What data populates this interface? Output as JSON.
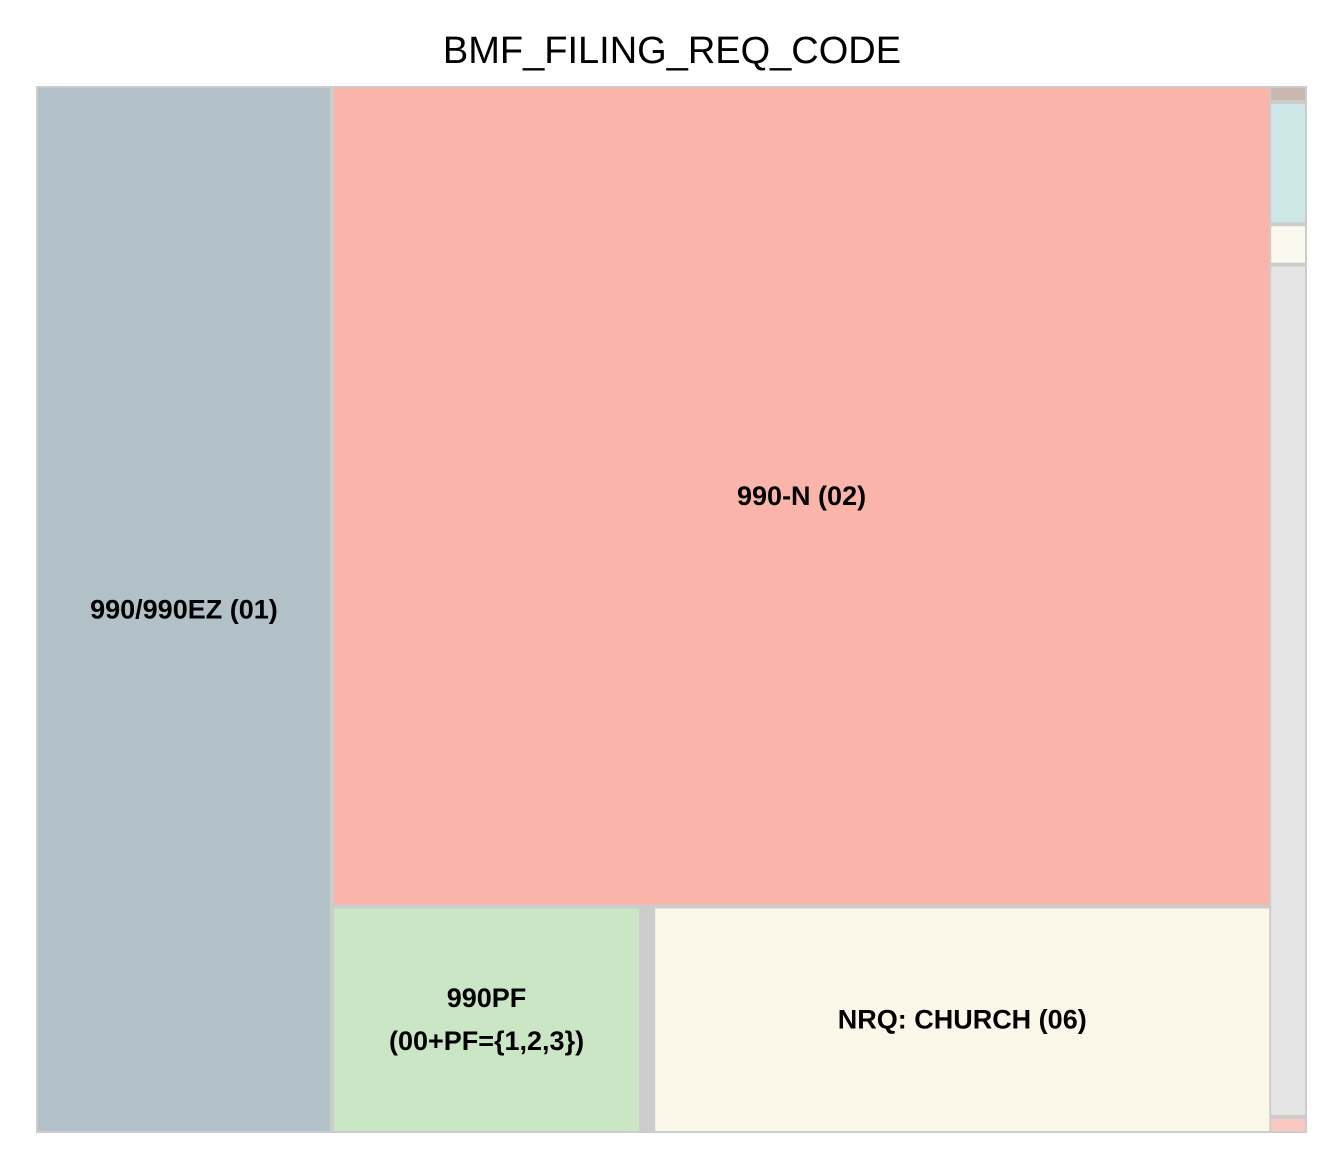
{
  "chart_data": {
    "type": "treemap",
    "title": "BMF_FILING_REQ_CODE",
    "tiles": [
      {
        "label": [
          "990/990EZ (01)"
        ],
        "value": 2.95,
        "color": "#b2c0c8"
      },
      {
        "label": [
          "990-N (02)"
        ],
        "value": 7.4,
        "color": "#fab4aa"
      },
      {
        "label": [
          "990PF",
          "(00+PF={1,2,3})"
        ],
        "value": 0.68,
        "color": "#cbe6c5"
      },
      {
        "label": [
          "NRQ: CHURCH (06)"
        ],
        "value": 1.35,
        "color": "#faf7e9"
      },
      {
        "label": [
          ""
        ],
        "value": 0.004,
        "color": "#c8b8ae"
      },
      {
        "label": [
          ""
        ],
        "value": 0.039,
        "color": "#cee8e8"
      },
      {
        "label": [
          ""
        ],
        "value": 0.012,
        "color": "#faf9f0"
      },
      {
        "label": [
          ""
        ],
        "value": 0.28,
        "color": "#e5e5e5"
      },
      {
        "label": [
          ""
        ],
        "value": 0.004,
        "color": "#f9c8c2"
      }
    ]
  }
}
